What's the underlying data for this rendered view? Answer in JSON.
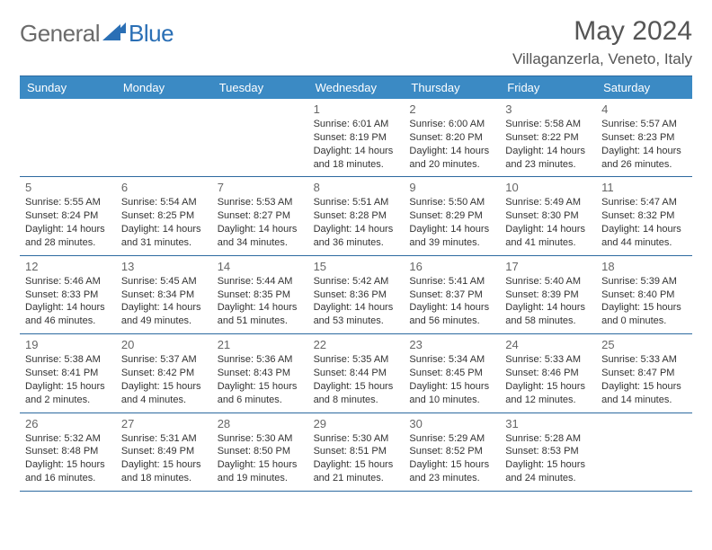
{
  "logo": {
    "text1": "General",
    "text2": "Blue"
  },
  "title": "May 2024",
  "location": "Villaganzerla, Veneto, Italy",
  "weekdays": [
    "Sunday",
    "Monday",
    "Tuesday",
    "Wednesday",
    "Thursday",
    "Friday",
    "Saturday"
  ],
  "colors": {
    "header_bg": "#3b8ac4",
    "header_text": "#ffffff",
    "border": "#2d6aa0",
    "body_text": "#333333",
    "logo_gray": "#6b6b6b",
    "logo_blue": "#2a6fb5"
  },
  "weeks": [
    [
      null,
      null,
      null,
      {
        "day": "1",
        "sunrise": "Sunrise: 6:01 AM",
        "sunset": "Sunset: 8:19 PM",
        "dl1": "Daylight: 14 hours",
        "dl2": "and 18 minutes."
      },
      {
        "day": "2",
        "sunrise": "Sunrise: 6:00 AM",
        "sunset": "Sunset: 8:20 PM",
        "dl1": "Daylight: 14 hours",
        "dl2": "and 20 minutes."
      },
      {
        "day": "3",
        "sunrise": "Sunrise: 5:58 AM",
        "sunset": "Sunset: 8:22 PM",
        "dl1": "Daylight: 14 hours",
        "dl2": "and 23 minutes."
      },
      {
        "day": "4",
        "sunrise": "Sunrise: 5:57 AM",
        "sunset": "Sunset: 8:23 PM",
        "dl1": "Daylight: 14 hours",
        "dl2": "and 26 minutes."
      }
    ],
    [
      {
        "day": "5",
        "sunrise": "Sunrise: 5:55 AM",
        "sunset": "Sunset: 8:24 PM",
        "dl1": "Daylight: 14 hours",
        "dl2": "and 28 minutes."
      },
      {
        "day": "6",
        "sunrise": "Sunrise: 5:54 AM",
        "sunset": "Sunset: 8:25 PM",
        "dl1": "Daylight: 14 hours",
        "dl2": "and 31 minutes."
      },
      {
        "day": "7",
        "sunrise": "Sunrise: 5:53 AM",
        "sunset": "Sunset: 8:27 PM",
        "dl1": "Daylight: 14 hours",
        "dl2": "and 34 minutes."
      },
      {
        "day": "8",
        "sunrise": "Sunrise: 5:51 AM",
        "sunset": "Sunset: 8:28 PM",
        "dl1": "Daylight: 14 hours",
        "dl2": "and 36 minutes."
      },
      {
        "day": "9",
        "sunrise": "Sunrise: 5:50 AM",
        "sunset": "Sunset: 8:29 PM",
        "dl1": "Daylight: 14 hours",
        "dl2": "and 39 minutes."
      },
      {
        "day": "10",
        "sunrise": "Sunrise: 5:49 AM",
        "sunset": "Sunset: 8:30 PM",
        "dl1": "Daylight: 14 hours",
        "dl2": "and 41 minutes."
      },
      {
        "day": "11",
        "sunrise": "Sunrise: 5:47 AM",
        "sunset": "Sunset: 8:32 PM",
        "dl1": "Daylight: 14 hours",
        "dl2": "and 44 minutes."
      }
    ],
    [
      {
        "day": "12",
        "sunrise": "Sunrise: 5:46 AM",
        "sunset": "Sunset: 8:33 PM",
        "dl1": "Daylight: 14 hours",
        "dl2": "and 46 minutes."
      },
      {
        "day": "13",
        "sunrise": "Sunrise: 5:45 AM",
        "sunset": "Sunset: 8:34 PM",
        "dl1": "Daylight: 14 hours",
        "dl2": "and 49 minutes."
      },
      {
        "day": "14",
        "sunrise": "Sunrise: 5:44 AM",
        "sunset": "Sunset: 8:35 PM",
        "dl1": "Daylight: 14 hours",
        "dl2": "and 51 minutes."
      },
      {
        "day": "15",
        "sunrise": "Sunrise: 5:42 AM",
        "sunset": "Sunset: 8:36 PM",
        "dl1": "Daylight: 14 hours",
        "dl2": "and 53 minutes."
      },
      {
        "day": "16",
        "sunrise": "Sunrise: 5:41 AM",
        "sunset": "Sunset: 8:37 PM",
        "dl1": "Daylight: 14 hours",
        "dl2": "and 56 minutes."
      },
      {
        "day": "17",
        "sunrise": "Sunrise: 5:40 AM",
        "sunset": "Sunset: 8:39 PM",
        "dl1": "Daylight: 14 hours",
        "dl2": "and 58 minutes."
      },
      {
        "day": "18",
        "sunrise": "Sunrise: 5:39 AM",
        "sunset": "Sunset: 8:40 PM",
        "dl1": "Daylight: 15 hours",
        "dl2": "and 0 minutes."
      }
    ],
    [
      {
        "day": "19",
        "sunrise": "Sunrise: 5:38 AM",
        "sunset": "Sunset: 8:41 PM",
        "dl1": "Daylight: 15 hours",
        "dl2": "and 2 minutes."
      },
      {
        "day": "20",
        "sunrise": "Sunrise: 5:37 AM",
        "sunset": "Sunset: 8:42 PM",
        "dl1": "Daylight: 15 hours",
        "dl2": "and 4 minutes."
      },
      {
        "day": "21",
        "sunrise": "Sunrise: 5:36 AM",
        "sunset": "Sunset: 8:43 PM",
        "dl1": "Daylight: 15 hours",
        "dl2": "and 6 minutes."
      },
      {
        "day": "22",
        "sunrise": "Sunrise: 5:35 AM",
        "sunset": "Sunset: 8:44 PM",
        "dl1": "Daylight: 15 hours",
        "dl2": "and 8 minutes."
      },
      {
        "day": "23",
        "sunrise": "Sunrise: 5:34 AM",
        "sunset": "Sunset: 8:45 PM",
        "dl1": "Daylight: 15 hours",
        "dl2": "and 10 minutes."
      },
      {
        "day": "24",
        "sunrise": "Sunrise: 5:33 AM",
        "sunset": "Sunset: 8:46 PM",
        "dl1": "Daylight: 15 hours",
        "dl2": "and 12 minutes."
      },
      {
        "day": "25",
        "sunrise": "Sunrise: 5:33 AM",
        "sunset": "Sunset: 8:47 PM",
        "dl1": "Daylight: 15 hours",
        "dl2": "and 14 minutes."
      }
    ],
    [
      {
        "day": "26",
        "sunrise": "Sunrise: 5:32 AM",
        "sunset": "Sunset: 8:48 PM",
        "dl1": "Daylight: 15 hours",
        "dl2": "and 16 minutes."
      },
      {
        "day": "27",
        "sunrise": "Sunrise: 5:31 AM",
        "sunset": "Sunset: 8:49 PM",
        "dl1": "Daylight: 15 hours",
        "dl2": "and 18 minutes."
      },
      {
        "day": "28",
        "sunrise": "Sunrise: 5:30 AM",
        "sunset": "Sunset: 8:50 PM",
        "dl1": "Daylight: 15 hours",
        "dl2": "and 19 minutes."
      },
      {
        "day": "29",
        "sunrise": "Sunrise: 5:30 AM",
        "sunset": "Sunset: 8:51 PM",
        "dl1": "Daylight: 15 hours",
        "dl2": "and 21 minutes."
      },
      {
        "day": "30",
        "sunrise": "Sunrise: 5:29 AM",
        "sunset": "Sunset: 8:52 PM",
        "dl1": "Daylight: 15 hours",
        "dl2": "and 23 minutes."
      },
      {
        "day": "31",
        "sunrise": "Sunrise: 5:28 AM",
        "sunset": "Sunset: 8:53 PM",
        "dl1": "Daylight: 15 hours",
        "dl2": "and 24 minutes."
      },
      null
    ]
  ]
}
